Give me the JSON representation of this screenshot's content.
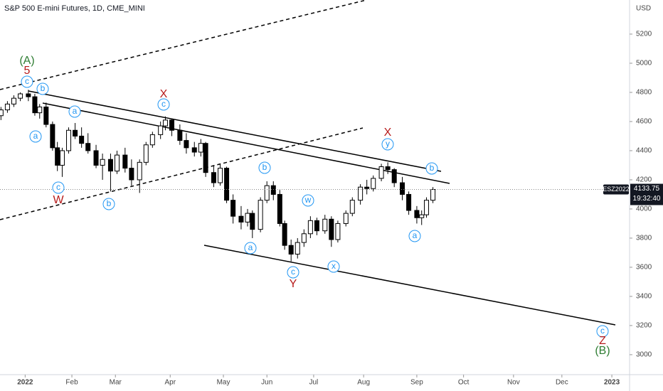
{
  "chart_data": {
    "type": "candlestick",
    "title": "S&P 500 E-mini Futures, 1D, CME_MINI",
    "y_axis_label": "USD",
    "symbol_label": "ESZ2022",
    "countdown": "19:32:40",
    "ylim": [
      2863,
      5434
    ],
    "yticks": [
      3000,
      3200,
      3400,
      3600,
      3800,
      4000,
      4200,
      4400,
      4600,
      4800,
      5000,
      5200
    ],
    "xlim": [
      -14.6,
      376
    ],
    "xticks": [
      {
        "value": 1,
        "label": "2022"
      },
      {
        "value": 30,
        "label": "Feb"
      },
      {
        "value": 57,
        "label": "Mar"
      },
      {
        "value": 91,
        "label": "Apr"
      },
      {
        "value": 124,
        "label": "May"
      },
      {
        "value": 151,
        "label": "Jun"
      },
      {
        "value": 180,
        "label": "Jul"
      },
      {
        "value": 211,
        "label": "Aug"
      },
      {
        "value": 244,
        "label": "Sep"
      },
      {
        "value": 273,
        "label": "Oct"
      },
      {
        "value": 304,
        "label": "Nov"
      },
      {
        "value": 334,
        "label": "Dec"
      },
      {
        "value": 365,
        "label": "2023"
      }
    ],
    "up_color": "#ffffff",
    "down_color": "#000000",
    "x": [
      -14,
      -10,
      -6,
      -2,
      3,
      7,
      10,
      14,
      18,
      21,
      24,
      28,
      32,
      36,
      40,
      45,
      49,
      54,
      58,
      63,
      67,
      72,
      76,
      80,
      85,
      88,
      92,
      97,
      101,
      106,
      110,
      113,
      118,
      122,
      126,
      130,
      135,
      139,
      142,
      147,
      151,
      155,
      159,
      162,
      166,
      170,
      174,
      178,
      182,
      187,
      191,
      195,
      200,
      204,
      209,
      213,
      217,
      222,
      226,
      230,
      235,
      239,
      244,
      247,
      250,
      254
    ],
    "open": [
      4640,
      4680,
      4720,
      4760,
      4790,
      4770,
      4660,
      4700,
      4580,
      4420,
      4300,
      4400,
      4540,
      4500,
      4450,
      4400,
      4300,
      4340,
      4260,
      4370,
      4280,
      4200,
      4320,
      4440,
      4510,
      4570,
      4610,
      4540,
      4470,
      4420,
      4390,
      4450,
      4250,
      4180,
      4280,
      4060,
      3950,
      3910,
      3970,
      3860,
      4060,
      4160,
      4100,
      3900,
      3750,
      3690,
      3770,
      3830,
      3920,
      3850,
      3930,
      3790,
      3900,
      3970,
      4060,
      4150,
      4140,
      4210,
      4290,
      4270,
      4180,
      4100,
      3990,
      3940,
      3960,
      4060
    ],
    "high": [
      4700,
      4740,
      4780,
      4800,
      4818,
      4790,
      4720,
      4730,
      4600,
      4460,
      4420,
      4560,
      4590,
      4560,
      4520,
      4440,
      4380,
      4380,
      4400,
      4420,
      4340,
      4340,
      4460,
      4530,
      4600,
      4635,
      4620,
      4580,
      4520,
      4460,
      4480,
      4460,
      4300,
      4310,
      4290,
      4100,
      4020,
      4000,
      3990,
      4080,
      4190,
      4190,
      4130,
      3920,
      3790,
      3800,
      3860,
      3950,
      3940,
      3960,
      3950,
      3920,
      3990,
      4080,
      4170,
      4200,
      4230,
      4310,
      4320,
      4280,
      4220,
      4120,
      4020,
      3990,
      4080,
      4150
    ],
    "low": [
      4610,
      4660,
      4700,
      4740,
      4740,
      4640,
      4620,
      4560,
      4400,
      4260,
      4220,
      4380,
      4480,
      4420,
      4380,
      4280,
      4200,
      4120,
      4240,
      4250,
      4160,
      4110,
      4300,
      4420,
      4480,
      4540,
      4500,
      4440,
      4380,
      4360,
      4360,
      4220,
      4150,
      4160,
      4040,
      3900,
      3860,
      3880,
      3800,
      3840,
      4040,
      4060,
      3880,
      3720,
      3640,
      3660,
      3740,
      3800,
      3820,
      3830,
      3740,
      3770,
      3880,
      3950,
      4030,
      4100,
      4120,
      4190,
      4240,
      4150,
      4060,
      3960,
      3900,
      3890,
      3940,
      4040
    ],
    "close": [
      4680,
      4720,
      4760,
      4790,
      4770,
      4660,
      4700,
      4580,
      4420,
      4300,
      4400,
      4540,
      4500,
      4450,
      4400,
      4300,
      4340,
      4260,
      4370,
      4280,
      4200,
      4320,
      4440,
      4510,
      4570,
      4610,
      4540,
      4470,
      4420,
      4390,
      4450,
      4250,
      4180,
      4280,
      4060,
      3950,
      3910,
      3970,
      3860,
      4060,
      4160,
      4100,
      3900,
      3750,
      3690,
      3770,
      3830,
      3920,
      3850,
      3930,
      3790,
      3900,
      3970,
      4060,
      4150,
      4140,
      4210,
      4290,
      4270,
      4180,
      4100,
      3990,
      3940,
      3960,
      4060,
      4133.75
    ],
    "annotations": [
      "(A)",
      "5",
      "c",
      "b",
      "a",
      "a",
      "c",
      "W",
      "b",
      "X",
      "c",
      "b",
      "a",
      "w",
      "c",
      "Y",
      "x",
      "X",
      "y",
      "b",
      "a",
      "c",
      "Z",
      "(B)"
    ]
  }
}
